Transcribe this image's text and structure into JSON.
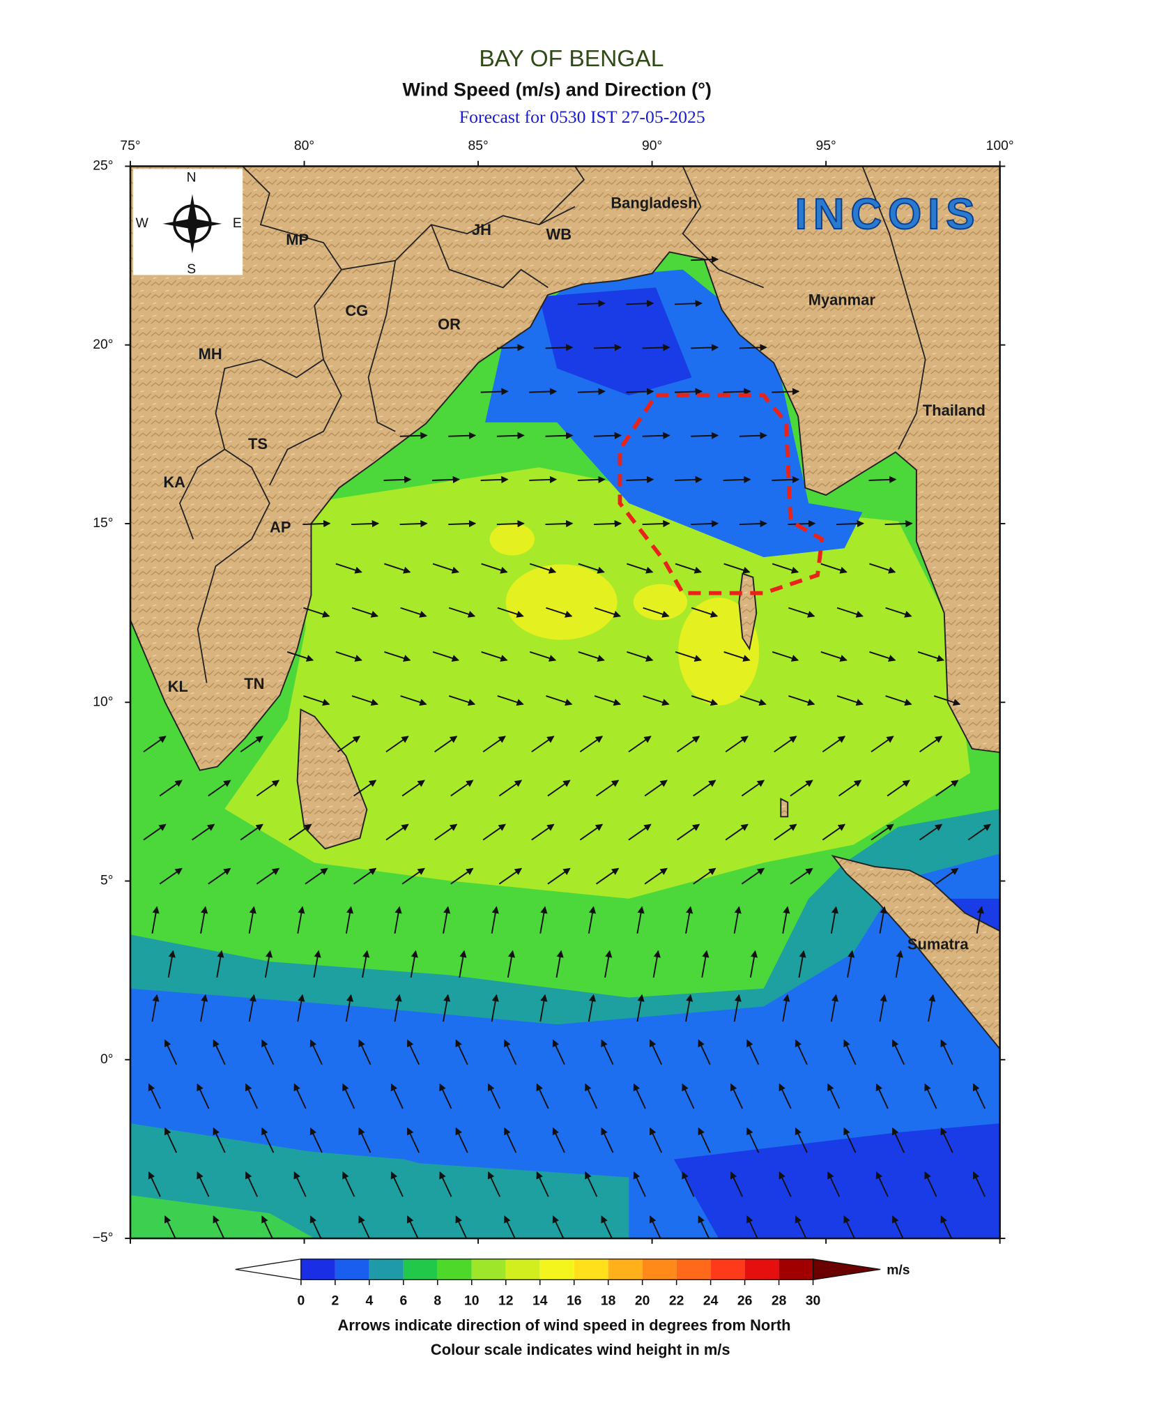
{
  "header": {
    "title": "BAY OF BENGAL",
    "subtitle": "Wind Speed (m/s) and Direction (°)",
    "forecast": "Forecast for  0530 IST 27-05-2025"
  },
  "map": {
    "xlim": [
      75,
      100
    ],
    "ylim": [
      -5,
      25
    ],
    "xticks": [
      {
        "value": 75,
        "label": "75°"
      },
      {
        "value": 80,
        "label": "80°"
      },
      {
        "value": 85,
        "label": "85°"
      },
      {
        "value": 90,
        "label": "90°"
      },
      {
        "value": 95,
        "label": "95°"
      },
      {
        "value": 100,
        "label": "100°"
      }
    ],
    "yticks": [
      {
        "value": 25,
        "label": "25°"
      },
      {
        "value": 20,
        "label": "20°"
      },
      {
        "value": 15,
        "label": "15°"
      },
      {
        "value": 10,
        "label": "10°"
      },
      {
        "value": 5,
        "label": "5°"
      },
      {
        "value": 0,
        "label": "0°"
      },
      {
        "value": -5,
        "label": "−5°"
      }
    ],
    "compass": [
      "N",
      "S",
      "E",
      "W"
    ],
    "logo": "INCOIS",
    "place_labels": [
      "MP",
      "JH",
      "WB",
      "Bangladesh",
      "CG",
      "OR",
      "MH",
      "TS",
      "KA",
      "AP",
      "KL",
      "TN",
      "Myanmar",
      "Thailand",
      "Sumatra"
    ]
  },
  "colorbar": {
    "ticks": [
      0,
      2,
      4,
      6,
      8,
      10,
      12,
      14,
      16,
      18,
      20,
      22,
      24,
      26,
      28,
      30
    ],
    "colors": [
      "#1a2ee6",
      "#1a5ef0",
      "#1e9aa8",
      "#22c84a",
      "#4ed92a",
      "#9ee62a",
      "#d2ee1e",
      "#f5f51e",
      "#ffe01a",
      "#ffb01a",
      "#ff8a1a",
      "#ff6a1a",
      "#ff3a1a",
      "#e60f0f",
      "#a00000"
    ],
    "under_color": "#ffffff",
    "over_color": "#6b0000",
    "unit": "m/s"
  },
  "caption": [
    "Arrows indicate direction of wind speed in degrees from North",
    "Colour scale indicates wind height in m/s"
  ]
}
